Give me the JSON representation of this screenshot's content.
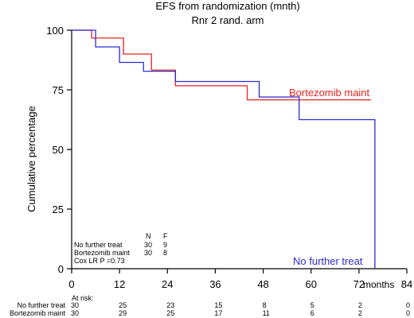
{
  "chart_data": {
    "type": "line",
    "title": "EFS from randomization (mnth)",
    "subtitle": "Rnr 2 rand. arm",
    "xlabel": "months",
    "ylabel": "Cumulative percentage",
    "xlim": [
      0,
      84
    ],
    "ylim": [
      0,
      100
    ],
    "xticks": [
      0,
      12,
      24,
      36,
      48,
      60,
      72,
      84
    ],
    "yticks": [
      0,
      25,
      50,
      75,
      100
    ],
    "grid": false,
    "series": [
      {
        "name": "Bortezomib maint",
        "color": "#e8231f",
        "label_text": "Bortezomib maint",
        "x": [
          0,
          5,
          12,
          13,
          18,
          20,
          25,
          26,
          43,
          44,
          75
        ],
        "y": [
          100,
          96.7,
          96.7,
          90,
          90,
          83.3,
          83.3,
          76.7,
          76.7,
          70.8,
          70.8
        ]
      },
      {
        "name": "No further treat",
        "color": "#2b2bd0",
        "label_text": "No further treat",
        "x": [
          0,
          6,
          10,
          12,
          18,
          25,
          26,
          46,
          47,
          56,
          57,
          76,
          76
        ],
        "y": [
          100,
          93,
          93,
          86.5,
          82.8,
          82.8,
          78.5,
          78.5,
          72,
          72,
          62.5,
          62.5,
          0
        ]
      }
    ],
    "stats_table": {
      "header": [
        "N",
        "F"
      ],
      "rows": [
        {
          "label": "No further treat",
          "n": "30",
          "f": "9"
        },
        {
          "label": "Bortezomib maint",
          "n": "30",
          "f": "8"
        }
      ],
      "test": "Cox LR P =0.73"
    },
    "at_risk": {
      "title": "At risk:",
      "x": [
        0,
        12,
        24,
        36,
        48,
        60,
        72,
        84
      ],
      "rows": [
        {
          "label": "No further treat",
          "values": [
            "30",
            "25",
            "23",
            "15",
            "8",
            "5",
            "2",
            "0"
          ]
        },
        {
          "label": "Bortezomib maint",
          "values": [
            "30",
            "29",
            "25",
            "17",
            "11",
            "6",
            "2",
            "0"
          ]
        }
      ]
    }
  }
}
